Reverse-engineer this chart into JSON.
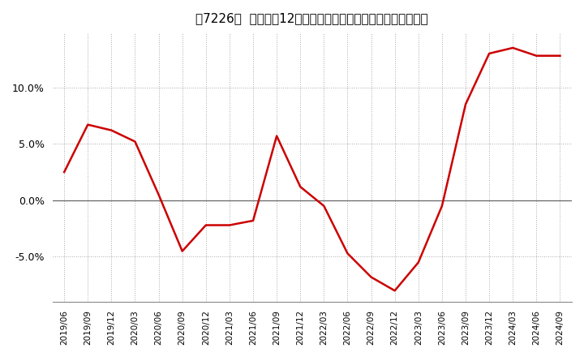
{
  "title": "［7226］  売上高の12か月移動合計の対前年同期増減率の推移",
  "line_color": "#cc0000",
  "background_color": "#ffffff",
  "plot_bg_color": "#ffffff",
  "grid_color": "#aaaaaa",
  "ylim": [
    -0.09,
    0.148
  ],
  "yticks": [
    -0.05,
    0.0,
    0.05,
    0.1
  ],
  "dates": [
    "2019/06",
    "2019/09",
    "2019/12",
    "2020/03",
    "2020/06",
    "2020/09",
    "2020/12",
    "2021/03",
    "2021/06",
    "2021/09",
    "2021/12",
    "2022/03",
    "2022/06",
    "2022/09",
    "2022/12",
    "2023/03",
    "2023/06",
    "2023/09",
    "2023/12",
    "2024/03",
    "2024/06",
    "2024/09"
  ],
  "values": [
    0.025,
    0.067,
    0.062,
    0.052,
    0.005,
    -0.045,
    -0.022,
    -0.022,
    -0.018,
    0.057,
    0.012,
    -0.005,
    -0.047,
    -0.068,
    -0.08,
    -0.055,
    -0.005,
    0.085,
    0.13,
    0.135,
    0.128,
    0.128
  ]
}
